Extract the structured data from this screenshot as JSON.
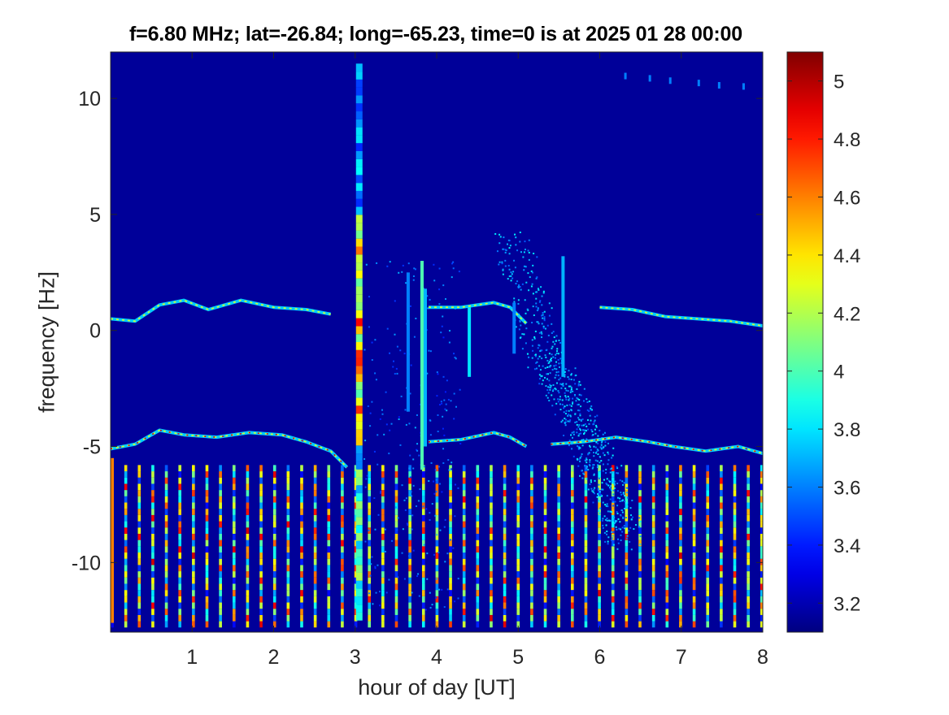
{
  "chart_data": {
    "type": "heatmap",
    "title": "f=6.80 MHz;  lat=-26.84; long=-65.23, time=0 is at 2025 01 28 00:00",
    "xlabel": "hour of day [UT]",
    "ylabel": "frequency [Hz]",
    "xlim": [
      0,
      8
    ],
    "ylim": [
      -13,
      12
    ],
    "x_ticks": [
      "1",
      "2",
      "3",
      "4",
      "5",
      "6",
      "7",
      "8"
    ],
    "x_tick_values": [
      1,
      2,
      3,
      4,
      5,
      6,
      7,
      8
    ],
    "y_ticks": [
      "10",
      "5",
      "0",
      "-5",
      "-10"
    ],
    "y_tick_values": [
      10,
      5,
      0,
      -5,
      -10
    ],
    "colormap": "jet",
    "colorbar": {
      "min": 3.1,
      "max": 5.1,
      "ticks": [
        "5",
        "4.8",
        "4.6",
        "4.4",
        "4.2",
        "4",
        "3.8",
        "3.6",
        "3.4",
        "3.2"
      ],
      "tick_values": [
        5,
        4.8,
        4.6,
        4.4,
        4.2,
        4,
        3.8,
        3.6,
        3.4,
        3.2
      ]
    },
    "background_value": 3.15,
    "grid": false,
    "features": [
      {
        "name": "upper trace (segment 1)",
        "points": [
          [
            0.0,
            0.5
          ],
          [
            0.3,
            0.4
          ],
          [
            0.6,
            1.1
          ],
          [
            0.9,
            1.3
          ],
          [
            1.2,
            0.9
          ],
          [
            1.6,
            1.3
          ],
          [
            2.0,
            1.0
          ],
          [
            2.4,
            0.9
          ],
          [
            2.7,
            0.7
          ]
        ]
      },
      {
        "name": "upper trace (segment 2)",
        "points": [
          [
            3.9,
            1.0
          ],
          [
            4.3,
            1.0
          ],
          [
            4.7,
            1.2
          ],
          [
            4.9,
            1.0
          ],
          [
            5.1,
            0.3
          ]
        ]
      },
      {
        "name": "upper trace (segment 3)",
        "points": [
          [
            6.0,
            1.0
          ],
          [
            6.4,
            0.9
          ],
          [
            6.8,
            0.6
          ],
          [
            7.2,
            0.5
          ],
          [
            7.6,
            0.4
          ],
          [
            8.0,
            0.2
          ]
        ]
      },
      {
        "name": "lower trace (segment 1)",
        "points": [
          [
            0.0,
            -5.1
          ],
          [
            0.3,
            -4.9
          ],
          [
            0.6,
            -4.3
          ],
          [
            0.9,
            -4.5
          ],
          [
            1.3,
            -4.6
          ],
          [
            1.7,
            -4.4
          ],
          [
            2.1,
            -4.5
          ],
          [
            2.4,
            -4.8
          ],
          [
            2.7,
            -5.2
          ],
          [
            2.9,
            -5.9
          ]
        ]
      },
      {
        "name": "lower trace (segment 2)",
        "points": [
          [
            3.9,
            -4.8
          ],
          [
            4.3,
            -4.7
          ],
          [
            4.7,
            -4.4
          ],
          [
            4.9,
            -4.6
          ],
          [
            5.1,
            -5.0
          ]
        ]
      },
      {
        "name": "lower trace (segment 3)",
        "points": [
          [
            5.4,
            -4.9
          ],
          [
            5.8,
            -4.8
          ],
          [
            6.2,
            -4.6
          ],
          [
            6.6,
            -4.8
          ],
          [
            6.9,
            -5.0
          ],
          [
            7.3,
            -5.2
          ],
          [
            7.7,
            -5.0
          ],
          [
            8.0,
            -5.3
          ]
        ]
      },
      {
        "name": "broadband column",
        "x": 3.05,
        "ymin": -12.5,
        "ymax": 11.5,
        "peak": 4.9
      },
      {
        "name": "diagonal streak",
        "points": [
          [
            4.9,
            4.0
          ],
          [
            5.3,
            -1.0
          ],
          [
            5.7,
            -3.5
          ],
          [
            6.0,
            -6.0
          ],
          [
            6.3,
            -9.0
          ]
        ]
      }
    ],
    "periodic_bursts": {
      "interval_hours": 0.166,
      "ymin": -12.8,
      "ymax": -5.8,
      "peak": 5.0
    }
  }
}
